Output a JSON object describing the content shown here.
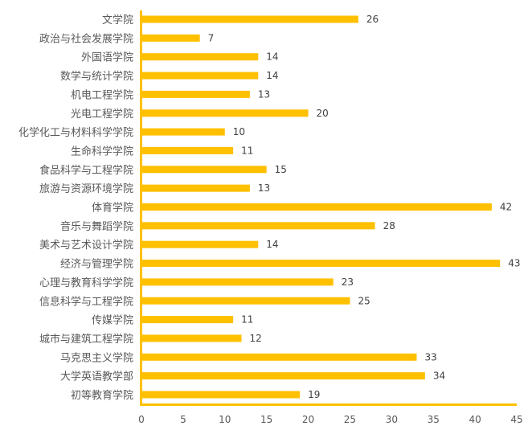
{
  "chart_data": {
    "type": "bar",
    "orientation": "horizontal",
    "title": "",
    "xlabel": "",
    "ylabel": "",
    "categories": [
      "文学院",
      "政治与社会发展学院",
      "外国语学院",
      "数学与统计学院",
      "机电工程学院",
      "光电工程学院",
      "化学化工与材料科学学院",
      "生命科学学院",
      "食品科学与工程学院",
      "旅游与资源环境学院",
      "体育学院",
      "音乐与舞蹈学院",
      "美术与艺术设计学院",
      "经济与管理学院",
      "心理与教育科学学院",
      "信息科学与工程学院",
      "传媒学院",
      "城市与建筑工程学院",
      "马克思主义学院",
      "大学英语教学部",
      "初等教育学院"
    ],
    "values": [
      26,
      7,
      14,
      14,
      13,
      20,
      10,
      11,
      15,
      13,
      42,
      28,
      14,
      43,
      23,
      25,
      11,
      12,
      33,
      34,
      19
    ],
    "xlim": [
      0,
      45
    ],
    "xticks": [
      "0",
      "5",
      "10",
      "15",
      "20",
      "25",
      "30",
      "35",
      "40",
      "45"
    ],
    "grid": false,
    "data_labels": true,
    "colors": {
      "bar": "#FFC000",
      "axis": "#FFC000"
    }
  }
}
